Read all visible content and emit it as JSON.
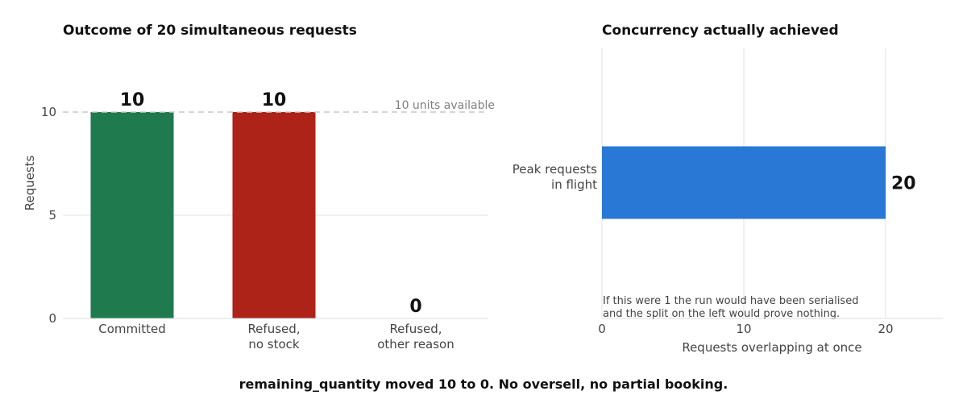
{
  "chart_data": [
    {
      "type": "bar",
      "title": "Outcome of 20 simultaneous requests",
      "ylabel": "Requests",
      "xlabel": "",
      "ylim": [
        0,
        12.5
      ],
      "yticks": [
        0,
        5,
        10
      ],
      "categories": [
        [
          "Committed"
        ],
        [
          "Refused,",
          "no stock"
        ],
        [
          "Refused,",
          "other reason"
        ]
      ],
      "values": [
        10,
        10,
        0
      ],
      "colors": [
        "#1f7a4d",
        "#ad2318",
        "#cccccc"
      ],
      "reference_line": {
        "value": 10,
        "label": "10 units available",
        "color": "#c8c8c8"
      },
      "grid": "horizontal"
    },
    {
      "type": "bar",
      "orientation": "horizontal",
      "title": "Concurrency actually achieved",
      "xlabel": "Requests overlapping at once",
      "xlim": [
        0,
        24
      ],
      "xticks": [
        0,
        10,
        20
      ],
      "categories": [
        [
          "Peak requests",
          "in flight"
        ]
      ],
      "values": [
        20
      ],
      "colors": [
        "#2a78d6"
      ],
      "annotation": [
        "If this were 1 the run would have been serialised",
        "and the split on the left would prove nothing."
      ],
      "grid": "vertical"
    }
  ],
  "footer": "remaining_quantity moved 10 to 0.  No oversell, no partial booking."
}
